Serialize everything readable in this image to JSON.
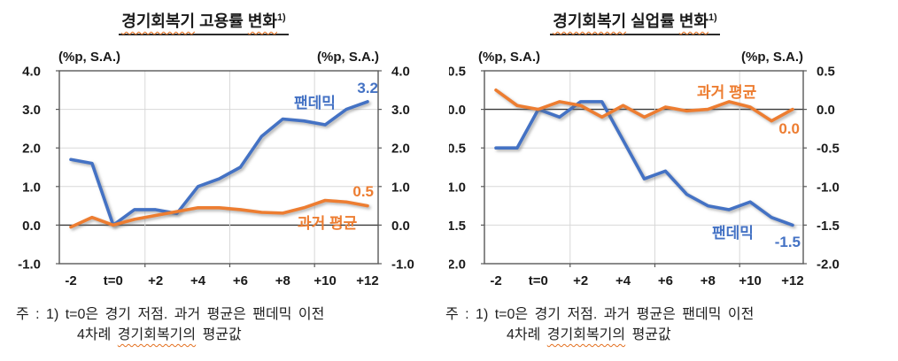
{
  "colors": {
    "blue": "#4472C4",
    "orange": "#ED7D31",
    "wavy_underline": "#e36f1e"
  },
  "charts": [
    {
      "title_words": [
        "경기회복기",
        "고용률",
        "변화"
      ],
      "title_sup": "1)",
      "unit_left": "(%p, S.A.)",
      "unit_right": "(%p, S.A.)",
      "series_label_blue": "팬데믹",
      "series_label_orange": "과거 평균",
      "end_label_blue": "3.2",
      "end_label_orange": "0.5",
      "note_line1": "주 : 1) t=0은 경기 저점. 과거 평균은 팬데믹 이전",
      "note_line2_parts": [
        "4차례",
        "경기회복기의",
        "평균값"
      ]
    },
    {
      "title_words": [
        "경기회복기",
        "실업률",
        "변화"
      ],
      "title_sup": "1)",
      "unit_left": "(%p, S.A.)",
      "unit_right": "(%p, S.A.)",
      "series_label_blue": "팬데믹",
      "series_label_orange": "과거 평균",
      "end_label_blue": "-1.5",
      "end_label_orange": "0.0",
      "note_line1": "주 : 1) t=0은 경기 저점. 과거 평균은 팬데믹 이전",
      "note_line2_parts": [
        "4차례",
        "경기회복기의",
        "평균값"
      ]
    }
  ],
  "chart_data": [
    {
      "type": "line",
      "title": "경기회복기 고용률 변화 1)",
      "ylabel": "(%p, S.A.)",
      "x": [
        -2,
        -1,
        0,
        1,
        2,
        3,
        4,
        5,
        6,
        7,
        8,
        9,
        10,
        11,
        12
      ],
      "x_tick_values": [
        -2,
        0,
        2,
        4,
        6,
        8,
        10,
        12
      ],
      "x_tick_labels": [
        "-2",
        "t=0",
        "+2",
        "+4",
        "+6",
        "+8",
        "+10",
        "+12"
      ],
      "ylim": [
        -1.0,
        4.0
      ],
      "ytick_step": 1.0,
      "y_tick_labels": [
        "4.0",
        "3.0",
        "2.0",
        "1.0",
        "0.0",
        "-1.0"
      ],
      "x_gridline_positions": [
        1.5,
        5.5,
        9.5
      ],
      "grid": true,
      "zero_line": true,
      "legend_position": "inline-labels",
      "series": [
        {
          "name": "팬데믹",
          "color": "#4472C4",
          "end_label": "3.2",
          "values": [
            1.7,
            1.6,
            0.0,
            0.4,
            0.4,
            0.3,
            1.0,
            1.2,
            1.5,
            2.3,
            2.75,
            2.7,
            2.6,
            3.0,
            3.2
          ]
        },
        {
          "name": "과거 평균",
          "color": "#ED7D31",
          "end_label": "0.5",
          "values": [
            -0.05,
            0.2,
            0.0,
            0.15,
            0.25,
            0.35,
            0.45,
            0.45,
            0.4,
            0.33,
            0.31,
            0.45,
            0.64,
            0.6,
            0.5
          ]
        }
      ]
    },
    {
      "type": "line",
      "title": "경기회복기 실업률 변화 1)",
      "ylabel": "(%p, S.A.)",
      "x": [
        -2,
        -1,
        0,
        1,
        2,
        3,
        4,
        5,
        6,
        7,
        8,
        9,
        10,
        11,
        12
      ],
      "x_tick_values": [
        -2,
        0,
        2,
        4,
        6,
        8,
        10,
        12
      ],
      "x_tick_labels": [
        "-2",
        "t=0",
        "+2",
        "+4",
        "+6",
        "+8",
        "+10",
        "+12"
      ],
      "ylim": [
        -2.0,
        0.5
      ],
      "ytick_step": 0.5,
      "y_tick_labels": [
        "0.5",
        "0.0",
        "-0.5",
        "-1.0",
        "-1.5",
        "-2.0"
      ],
      "x_gridline_positions": [
        1.5,
        5.5,
        9.5
      ],
      "grid": true,
      "zero_line": true,
      "legend_position": "inline-labels",
      "series": [
        {
          "name": "팬데믹",
          "color": "#4472C4",
          "end_label": "-1.5",
          "values": [
            -0.5,
            -0.5,
            0.0,
            -0.1,
            0.1,
            0.1,
            -0.4,
            -0.9,
            -0.8,
            -1.1,
            -1.25,
            -1.3,
            -1.2,
            -1.4,
            -1.5
          ]
        },
        {
          "name": "과거 평균",
          "color": "#ED7D31",
          "end_label": "0.0",
          "values": [
            0.25,
            0.05,
            0.0,
            0.1,
            0.05,
            -0.1,
            0.05,
            -0.1,
            0.03,
            -0.02,
            0.0,
            0.1,
            0.03,
            -0.15,
            0.0
          ]
        }
      ]
    }
  ]
}
